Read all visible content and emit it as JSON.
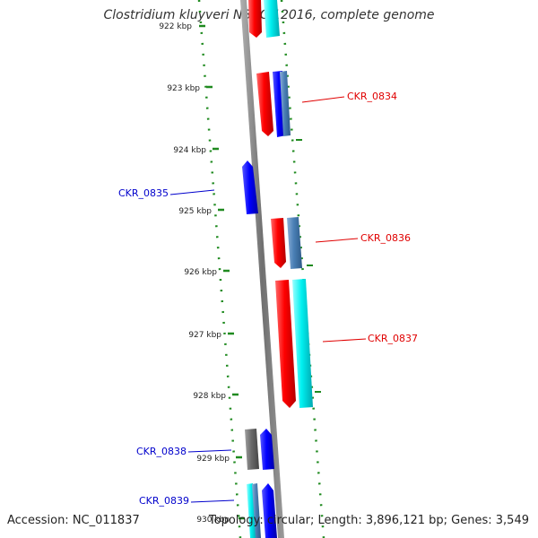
{
  "title": "Clostridium kluyveri NBRC 12016, complete genome",
  "footer": {
    "accession": "Accession: NC_011837",
    "summary": "Topology: circular; Length: 3,896,121 bp; Genes: 3,549"
  },
  "ticks": [
    {
      "label": "922 kbp"
    },
    {
      "label": "923 kbp"
    },
    {
      "label": "924 kbp"
    },
    {
      "label": "925 kbp"
    },
    {
      "label": "926 kbp"
    },
    {
      "label": "927 kbp"
    },
    {
      "label": "928 kbp"
    },
    {
      "label": "929 kbp"
    },
    {
      "label": "930 kbp"
    }
  ],
  "gene_labels": [
    {
      "text": "CKR_0834",
      "color": "#e00000"
    },
    {
      "text": "CKR_0835",
      "color": "#0000cc"
    },
    {
      "text": "CKR_0836",
      "color": "#e00000"
    },
    {
      "text": "CKR_0837",
      "color": "#e00000"
    },
    {
      "text": "CKR_0838",
      "color": "#0000cc"
    },
    {
      "text": "CKR_0839",
      "color": "#0000cc"
    }
  ],
  "colors": {
    "red": "#ff0000",
    "blue": "#0000ff",
    "cyan": "#00e5e5",
    "steel": "#4a7fb5",
    "gray": "#6a6a6a",
    "backbone": "#808080",
    "ruler": "#1f8a1f"
  }
}
